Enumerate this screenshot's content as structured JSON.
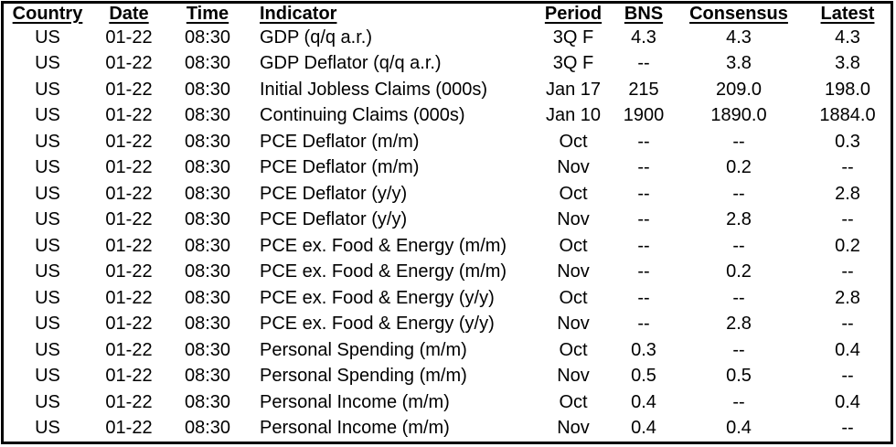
{
  "colors": {
    "background": "#ffffff",
    "text": "#000000",
    "border": "#000000"
  },
  "table": {
    "name": "economic-indicator-release-table",
    "columns": [
      {
        "key": "country",
        "label": "Country"
      },
      {
        "key": "date",
        "label": "Date"
      },
      {
        "key": "time",
        "label": "Time"
      },
      {
        "key": "indicator",
        "label": "Indicator"
      },
      {
        "key": "period",
        "label": "Period"
      },
      {
        "key": "bns",
        "label": "BNS"
      },
      {
        "key": "consensus",
        "label": "Consensus"
      },
      {
        "key": "latest",
        "label": "Latest"
      }
    ],
    "rows": [
      [
        "US",
        "01-22",
        "08:30",
        "GDP (q/q a.r.)",
        "3Q F",
        "4.3",
        "4.3",
        "4.3"
      ],
      [
        "US",
        "01-22",
        "08:30",
        "GDP Deflator (q/q a.r.)",
        "3Q F",
        "--",
        "3.8",
        "3.8"
      ],
      [
        "US",
        "01-22",
        "08:30",
        "Initial Jobless Claims (000s)",
        "Jan 17",
        "215",
        "209.0",
        "198.0"
      ],
      [
        "US",
        "01-22",
        "08:30",
        "Continuing Claims (000s)",
        "Jan 10",
        "1900",
        "1890.0",
        "1884.0"
      ],
      [
        "US",
        "01-22",
        "08:30",
        "PCE Deflator (m/m)",
        "Oct",
        "--",
        "--",
        "0.3"
      ],
      [
        "US",
        "01-22",
        "08:30",
        "PCE Deflator (m/m)",
        "Nov",
        "--",
        "0.2",
        "--"
      ],
      [
        "US",
        "01-22",
        "08:30",
        "PCE Deflator (y/y)",
        "Oct",
        "--",
        "--",
        "2.8"
      ],
      [
        "US",
        "01-22",
        "08:30",
        "PCE Deflator (y/y)",
        "Nov",
        "--",
        "2.8",
        "--"
      ],
      [
        "US",
        "01-22",
        "08:30",
        "PCE ex. Food & Energy (m/m)",
        "Oct",
        "--",
        "--",
        "0.2"
      ],
      [
        "US",
        "01-22",
        "08:30",
        "PCE ex. Food & Energy (m/m)",
        "Nov",
        "--",
        "0.2",
        "--"
      ],
      [
        "US",
        "01-22",
        "08:30",
        "PCE ex. Food & Energy (y/y)",
        "Oct",
        "--",
        "--",
        "2.8"
      ],
      [
        "US",
        "01-22",
        "08:30",
        "PCE ex. Food & Energy (y/y)",
        "Nov",
        "--",
        "2.8",
        "--"
      ],
      [
        "US",
        "01-22",
        "08:30",
        "Personal Spending (m/m)",
        "Oct",
        "0.3",
        "--",
        "0.4"
      ],
      [
        "US",
        "01-22",
        "08:30",
        "Personal Spending (m/m)",
        "Nov",
        "0.5",
        "0.5",
        "--"
      ],
      [
        "US",
        "01-22",
        "08:30",
        "Personal Income (m/m)",
        "Oct",
        "0.4",
        "--",
        "0.4"
      ],
      [
        "US",
        "01-22",
        "08:30",
        "Personal Income (m/m)",
        "Nov",
        "0.4",
        "0.4",
        "--"
      ]
    ]
  }
}
